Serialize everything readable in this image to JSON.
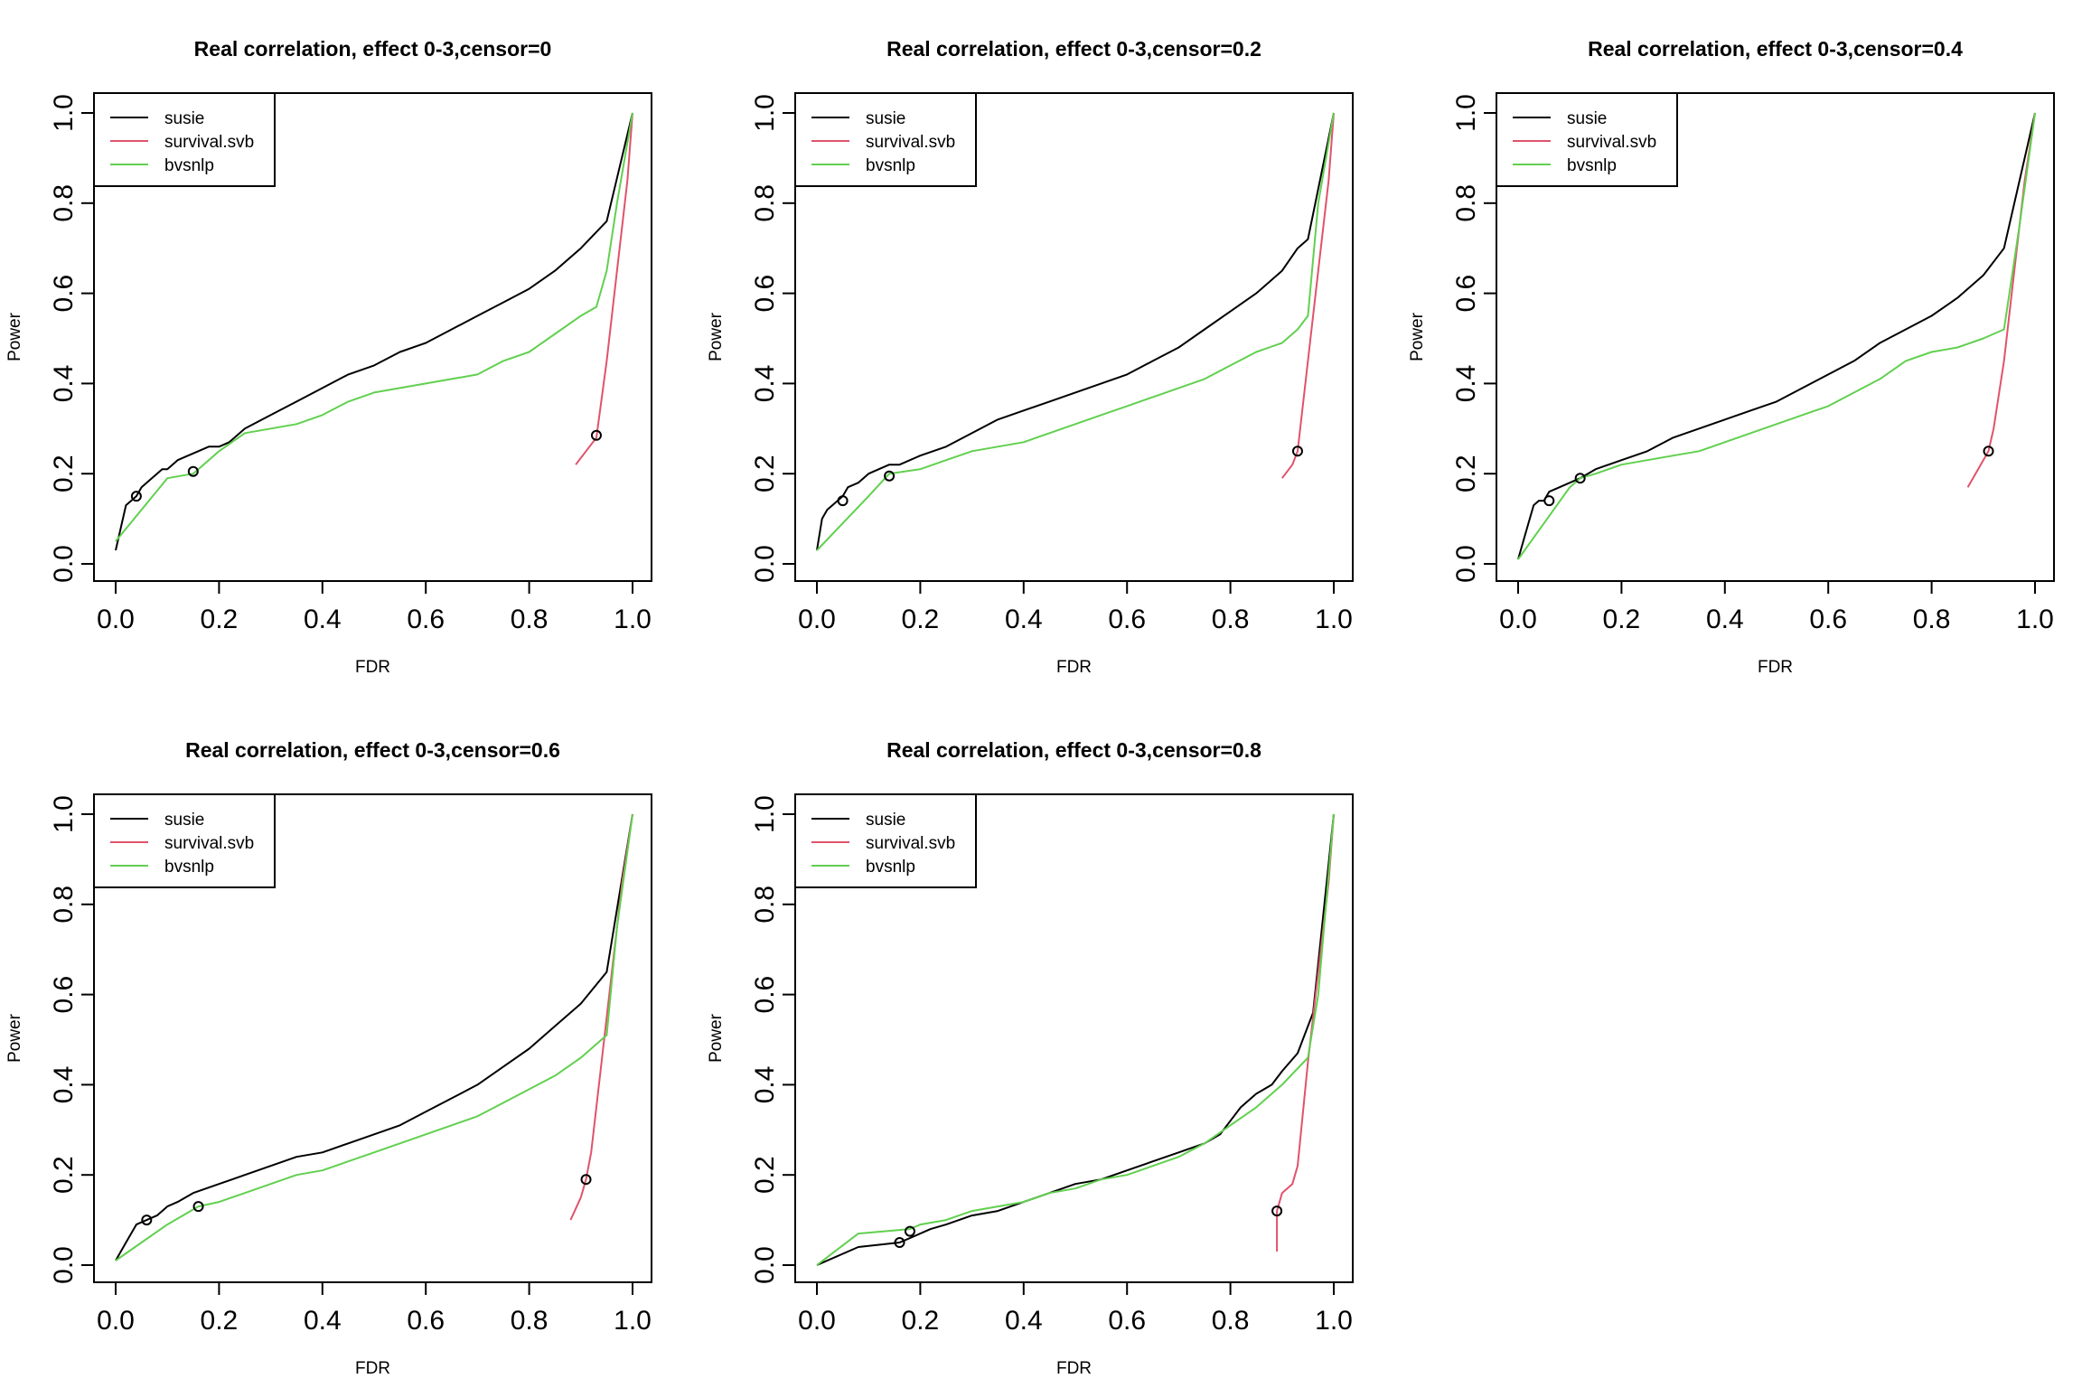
{
  "colors": {
    "susie": "#000000",
    "survival.svb": "#DF536B",
    "bvsnlp": "#61D04F"
  },
  "chart_data": [
    {
      "type": "line",
      "title": "Real correlation, effect 0-3,censor=0",
      "xlabel": "FDR",
      "ylabel": "Power",
      "xlim": [
        0,
        1
      ],
      "ylim": [
        0,
        1
      ],
      "xticks": [
        "0.0",
        "0.2",
        "0.4",
        "0.6",
        "0.8",
        "1.0"
      ],
      "yticks": [
        "0.0",
        "0.2",
        "0.4",
        "0.6",
        "0.8",
        "1.0"
      ],
      "grid": false,
      "legend": "top-left",
      "series": [
        {
          "name": "susie",
          "color": "#000000",
          "x": [
            0.0,
            0.01,
            0.02,
            0.03,
            0.04,
            0.05,
            0.06,
            0.07,
            0.08,
            0.09,
            0.1,
            0.12,
            0.14,
            0.16,
            0.18,
            0.2,
            0.22,
            0.25,
            0.3,
            0.35,
            0.4,
            0.45,
            0.5,
            0.55,
            0.6,
            0.65,
            0.7,
            0.75,
            0.8,
            0.85,
            0.9,
            0.95,
            1.0
          ],
          "y": [
            0.03,
            0.08,
            0.13,
            0.14,
            0.15,
            0.17,
            0.18,
            0.19,
            0.2,
            0.21,
            0.21,
            0.23,
            0.24,
            0.25,
            0.26,
            0.26,
            0.27,
            0.3,
            0.33,
            0.36,
            0.39,
            0.42,
            0.44,
            0.47,
            0.49,
            0.52,
            0.55,
            0.58,
            0.61,
            0.65,
            0.7,
            0.76,
            1.0
          ],
          "marker": [
            0.04,
            0.15
          ]
        },
        {
          "name": "survival.svb",
          "color": "#DF536B",
          "x": [
            0.89,
            0.91,
            0.93,
            0.95,
            0.97,
            0.99,
            1.0
          ],
          "y": [
            0.22,
            0.25,
            0.28,
            0.45,
            0.65,
            0.85,
            1.0
          ],
          "marker": [
            0.93,
            0.285
          ]
        },
        {
          "name": "bvsnlp",
          "color": "#61D04F",
          "x": [
            0.0,
            0.05,
            0.1,
            0.15,
            0.2,
            0.25,
            0.3,
            0.35,
            0.4,
            0.45,
            0.5,
            0.55,
            0.6,
            0.65,
            0.7,
            0.75,
            0.8,
            0.85,
            0.9,
            0.93,
            0.95,
            0.97,
            1.0
          ],
          "y": [
            0.05,
            0.12,
            0.19,
            0.2,
            0.25,
            0.29,
            0.3,
            0.31,
            0.33,
            0.36,
            0.38,
            0.39,
            0.4,
            0.41,
            0.42,
            0.45,
            0.47,
            0.51,
            0.55,
            0.57,
            0.65,
            0.8,
            1.0
          ],
          "marker": [
            0.15,
            0.205
          ]
        }
      ]
    },
    {
      "type": "line",
      "title": "Real correlation, effect 0-3,censor=0.2",
      "xlabel": "FDR",
      "ylabel": "Power",
      "xlim": [
        0,
        1
      ],
      "ylim": [
        0,
        1
      ],
      "xticks": [
        "0.0",
        "0.2",
        "0.4",
        "0.6",
        "0.8",
        "1.0"
      ],
      "yticks": [
        "0.0",
        "0.2",
        "0.4",
        "0.6",
        "0.8",
        "1.0"
      ],
      "grid": false,
      "legend": "top-left",
      "series": [
        {
          "name": "susie",
          "color": "#000000",
          "x": [
            0.0,
            0.01,
            0.02,
            0.03,
            0.04,
            0.05,
            0.06,
            0.08,
            0.1,
            0.12,
            0.14,
            0.16,
            0.2,
            0.25,
            0.3,
            0.35,
            0.4,
            0.45,
            0.5,
            0.55,
            0.6,
            0.65,
            0.7,
            0.75,
            0.8,
            0.85,
            0.9,
            0.93,
            0.95,
            1.0
          ],
          "y": [
            0.03,
            0.1,
            0.12,
            0.13,
            0.14,
            0.15,
            0.17,
            0.18,
            0.2,
            0.21,
            0.22,
            0.22,
            0.24,
            0.26,
            0.29,
            0.32,
            0.34,
            0.36,
            0.38,
            0.4,
            0.42,
            0.45,
            0.48,
            0.52,
            0.56,
            0.6,
            0.65,
            0.7,
            0.72,
            1.0
          ],
          "marker": [
            0.05,
            0.14
          ]
        },
        {
          "name": "survival.svb",
          "color": "#DF536B",
          "x": [
            0.9,
            0.92,
            0.93,
            0.95,
            0.97,
            0.99,
            1.0
          ],
          "y": [
            0.19,
            0.22,
            0.25,
            0.45,
            0.65,
            0.85,
            1.0
          ],
          "marker": [
            0.93,
            0.25
          ]
        },
        {
          "name": "bvsnlp",
          "color": "#61D04F",
          "x": [
            0.0,
            0.05,
            0.1,
            0.14,
            0.2,
            0.25,
            0.3,
            0.35,
            0.4,
            0.45,
            0.5,
            0.55,
            0.6,
            0.65,
            0.7,
            0.75,
            0.8,
            0.85,
            0.9,
            0.93,
            0.95,
            0.97,
            1.0
          ],
          "y": [
            0.03,
            0.09,
            0.15,
            0.2,
            0.21,
            0.23,
            0.25,
            0.26,
            0.27,
            0.29,
            0.31,
            0.33,
            0.35,
            0.37,
            0.39,
            0.41,
            0.44,
            0.47,
            0.49,
            0.52,
            0.55,
            0.8,
            1.0
          ],
          "marker": [
            0.14,
            0.195
          ]
        }
      ]
    },
    {
      "type": "line",
      "title": "Real correlation, effect 0-3,censor=0.4",
      "xlabel": "FDR",
      "ylabel": "Power",
      "xlim": [
        0,
        1
      ],
      "ylim": [
        0,
        1
      ],
      "xticks": [
        "0.0",
        "0.2",
        "0.4",
        "0.6",
        "0.8",
        "1.0"
      ],
      "yticks": [
        "0.0",
        "0.2",
        "0.4",
        "0.6",
        "0.8",
        "1.0"
      ],
      "grid": false,
      "legend": "top-left",
      "series": [
        {
          "name": "susie",
          "color": "#000000",
          "x": [
            0.0,
            0.01,
            0.02,
            0.03,
            0.04,
            0.05,
            0.06,
            0.08,
            0.1,
            0.12,
            0.15,
            0.2,
            0.25,
            0.3,
            0.35,
            0.4,
            0.45,
            0.5,
            0.55,
            0.6,
            0.65,
            0.7,
            0.75,
            0.8,
            0.85,
            0.9,
            0.94,
            1.0
          ],
          "y": [
            0.01,
            0.05,
            0.09,
            0.13,
            0.14,
            0.14,
            0.16,
            0.17,
            0.18,
            0.19,
            0.21,
            0.23,
            0.25,
            0.28,
            0.3,
            0.32,
            0.34,
            0.36,
            0.39,
            0.42,
            0.45,
            0.49,
            0.52,
            0.55,
            0.59,
            0.64,
            0.7,
            1.0
          ],
          "marker": [
            0.06,
            0.14
          ]
        },
        {
          "name": "survival.svb",
          "color": "#DF536B",
          "x": [
            0.87,
            0.9,
            0.91,
            0.92,
            0.94,
            0.96,
            0.98,
            1.0
          ],
          "y": [
            0.17,
            0.23,
            0.25,
            0.3,
            0.45,
            0.65,
            0.85,
            1.0
          ],
          "marker": [
            0.91,
            0.25
          ]
        },
        {
          "name": "bvsnlp",
          "color": "#61D04F",
          "x": [
            0.0,
            0.05,
            0.1,
            0.12,
            0.15,
            0.2,
            0.25,
            0.3,
            0.35,
            0.4,
            0.45,
            0.5,
            0.55,
            0.6,
            0.65,
            0.7,
            0.75,
            0.8,
            0.85,
            0.9,
            0.94,
            0.97,
            1.0
          ],
          "y": [
            0.01,
            0.09,
            0.17,
            0.19,
            0.2,
            0.22,
            0.23,
            0.24,
            0.25,
            0.27,
            0.29,
            0.31,
            0.33,
            0.35,
            0.38,
            0.41,
            0.45,
            0.47,
            0.48,
            0.5,
            0.52,
            0.75,
            1.0
          ],
          "marker": [
            0.12,
            0.19
          ]
        }
      ]
    },
    {
      "type": "line",
      "title": "Real correlation, effect 0-3,censor=0.6",
      "xlabel": "FDR",
      "ylabel": "Power",
      "xlim": [
        0,
        1
      ],
      "ylim": [
        0,
        1
      ],
      "xticks": [
        "0.0",
        "0.2",
        "0.4",
        "0.6",
        "0.8",
        "1.0"
      ],
      "yticks": [
        "0.0",
        "0.2",
        "0.4",
        "0.6",
        "0.8",
        "1.0"
      ],
      "grid": false,
      "legend": "top-left",
      "series": [
        {
          "name": "susie",
          "color": "#000000",
          "x": [
            0.0,
            0.02,
            0.04,
            0.06,
            0.08,
            0.1,
            0.12,
            0.15,
            0.2,
            0.25,
            0.3,
            0.35,
            0.4,
            0.45,
            0.5,
            0.55,
            0.6,
            0.65,
            0.7,
            0.75,
            0.8,
            0.85,
            0.9,
            0.95,
            1.0
          ],
          "y": [
            0.01,
            0.05,
            0.09,
            0.1,
            0.11,
            0.13,
            0.14,
            0.16,
            0.18,
            0.2,
            0.22,
            0.24,
            0.25,
            0.27,
            0.29,
            0.31,
            0.34,
            0.37,
            0.4,
            0.44,
            0.48,
            0.53,
            0.58,
            0.65,
            1.0
          ],
          "marker": [
            0.06,
            0.1
          ]
        },
        {
          "name": "survival.svb",
          "color": "#DF536B",
          "x": [
            0.88,
            0.9,
            0.91,
            0.92,
            0.94,
            0.96,
            0.98,
            1.0
          ],
          "y": [
            0.1,
            0.15,
            0.19,
            0.25,
            0.45,
            0.65,
            0.85,
            1.0
          ],
          "marker": [
            0.91,
            0.19
          ]
        },
        {
          "name": "bvsnlp",
          "color": "#61D04F",
          "x": [
            0.0,
            0.05,
            0.1,
            0.16,
            0.2,
            0.25,
            0.3,
            0.35,
            0.4,
            0.45,
            0.5,
            0.55,
            0.6,
            0.65,
            0.7,
            0.75,
            0.8,
            0.85,
            0.9,
            0.95,
            0.97,
            1.0
          ],
          "y": [
            0.01,
            0.05,
            0.09,
            0.13,
            0.14,
            0.16,
            0.18,
            0.2,
            0.21,
            0.23,
            0.25,
            0.27,
            0.29,
            0.31,
            0.33,
            0.36,
            0.39,
            0.42,
            0.46,
            0.51,
            0.75,
            1.0
          ],
          "marker": [
            0.16,
            0.13
          ]
        }
      ]
    },
    {
      "type": "line",
      "title": "Real correlation, effect 0-3,censor=0.8",
      "xlabel": "FDR",
      "ylabel": "Power",
      "xlim": [
        0,
        1
      ],
      "ylim": [
        0,
        1
      ],
      "xticks": [
        "0.0",
        "0.2",
        "0.4",
        "0.6",
        "0.8",
        "1.0"
      ],
      "yticks": [
        "0.0",
        "0.2",
        "0.4",
        "0.6",
        "0.8",
        "1.0"
      ],
      "grid": false,
      "legend": "top-left",
      "series": [
        {
          "name": "susie",
          "color": "#000000",
          "x": [
            0.0,
            0.08,
            0.16,
            0.18,
            0.2,
            0.22,
            0.25,
            0.3,
            0.35,
            0.4,
            0.45,
            0.5,
            0.55,
            0.6,
            0.65,
            0.7,
            0.75,
            0.78,
            0.8,
            0.82,
            0.85,
            0.88,
            0.9,
            0.93,
            0.96,
            1.0
          ],
          "y": [
            0.0,
            0.04,
            0.05,
            0.06,
            0.07,
            0.08,
            0.09,
            0.11,
            0.12,
            0.14,
            0.16,
            0.18,
            0.19,
            0.21,
            0.23,
            0.25,
            0.27,
            0.29,
            0.32,
            0.35,
            0.38,
            0.4,
            0.43,
            0.47,
            0.56,
            1.0
          ],
          "marker": [
            0.16,
            0.05
          ]
        },
        {
          "name": "survival.svb",
          "color": "#DF536B",
          "x": [
            0.89,
            0.89,
            0.9,
            0.92,
            0.93,
            0.95,
            0.97,
            0.99,
            1.0
          ],
          "y": [
            0.03,
            0.12,
            0.16,
            0.18,
            0.22,
            0.45,
            0.65,
            0.85,
            1.0
          ],
          "marker": [
            0.89,
            0.12
          ]
        },
        {
          "name": "bvsnlp",
          "color": "#61D04F",
          "x": [
            0.0,
            0.08,
            0.18,
            0.2,
            0.25,
            0.3,
            0.35,
            0.4,
            0.45,
            0.5,
            0.55,
            0.6,
            0.65,
            0.7,
            0.75,
            0.8,
            0.85,
            0.9,
            0.95,
            0.97,
            1.0
          ],
          "y": [
            0.0,
            0.07,
            0.08,
            0.09,
            0.1,
            0.12,
            0.13,
            0.14,
            0.16,
            0.17,
            0.19,
            0.2,
            0.22,
            0.24,
            0.27,
            0.31,
            0.35,
            0.4,
            0.46,
            0.6,
            1.0
          ],
          "marker": [
            0.18,
            0.075
          ]
        }
      ]
    }
  ]
}
